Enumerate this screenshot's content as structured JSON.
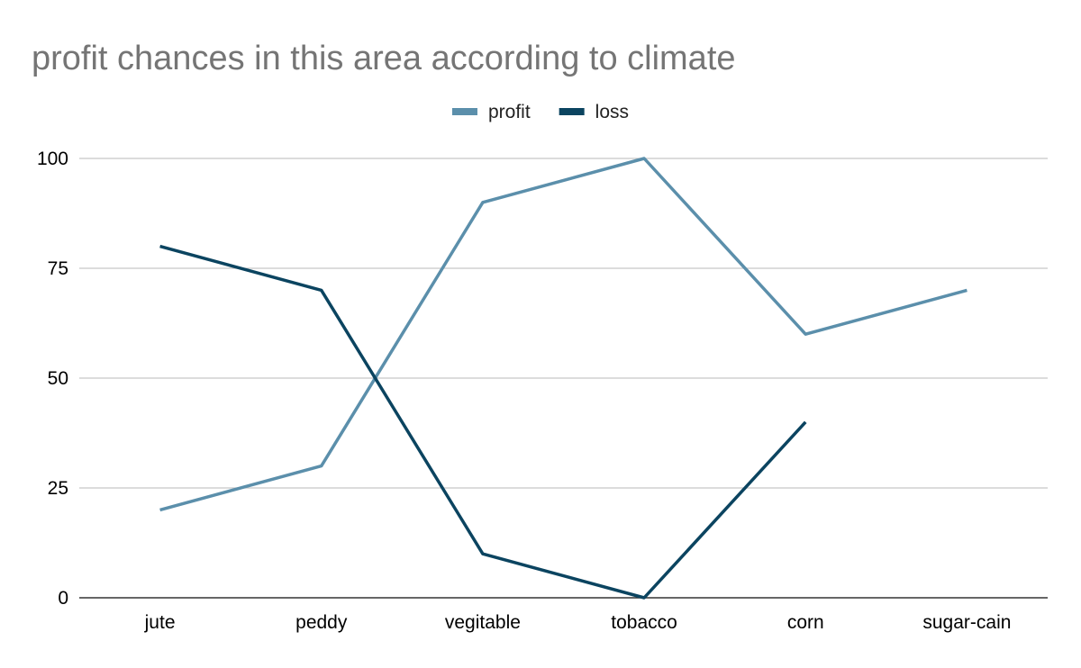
{
  "chart_data": {
    "type": "line",
    "title": "profit chances in this area according to climate",
    "xlabel": "",
    "ylabel": "",
    "categories": [
      "jute",
      "peddy",
      "vegitable",
      "tobacco",
      "corn",
      "sugar-cain"
    ],
    "ylim": [
      0,
      100
    ],
    "yticks": [
      0,
      25,
      50,
      75,
      100
    ],
    "grid": true,
    "legend_position": "top-center",
    "series": [
      {
        "name": "profit",
        "color": "#5b8fab",
        "values": [
          20,
          30,
          90,
          100,
          60,
          70
        ]
      },
      {
        "name": "loss",
        "color": "#0b4460",
        "values": [
          80,
          70,
          10,
          0,
          40,
          null
        ]
      }
    ]
  }
}
